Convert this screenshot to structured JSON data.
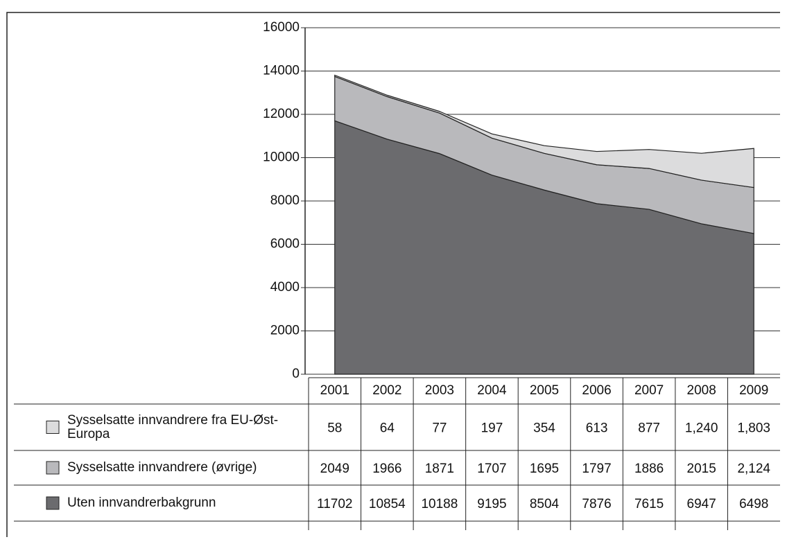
{
  "chart_data": {
    "type": "stacked_area",
    "categories": [
      "2001",
      "2002",
      "2003",
      "2004",
      "2005",
      "2006",
      "2007",
      "2008",
      "2009"
    ],
    "series": [
      {
        "name": "Sysselsatte innvandrere fra EU-Øst-Europa",
        "color": "#dcdcdd",
        "values": [
          58,
          64,
          77,
          197,
          354,
          613,
          877,
          1240,
          1803
        ],
        "value_labels": [
          "58",
          "64",
          "77",
          "197",
          "354",
          "613",
          "877",
          "1,240",
          "1,803"
        ]
      },
      {
        "name": "Sysselsatte innvandrere (øvrige)",
        "color": "#b9b9bc",
        "values": [
          2049,
          1966,
          1871,
          1707,
          1695,
          1797,
          1886,
          2015,
          2124
        ],
        "value_labels": [
          "2049",
          "1966",
          "1871",
          "1707",
          "1695",
          "1797",
          "1886",
          "2015",
          "2,124"
        ]
      },
      {
        "name": "Uten innvandrerbakgrunn",
        "color": "#6b6b6e",
        "values": [
          11702,
          10854,
          10188,
          9195,
          8504,
          7876,
          7615,
          6947,
          6498
        ],
        "value_labels": [
          "11702",
          "10854",
          "10188",
          "9195",
          "8504",
          "7876",
          "7615",
          "6947",
          "6498"
        ]
      }
    ],
    "ylim": [
      0,
      16000
    ],
    "yticks": [
      0,
      2000,
      4000,
      6000,
      8000,
      10000,
      12000,
      14000,
      16000
    ],
    "grid": true
  }
}
